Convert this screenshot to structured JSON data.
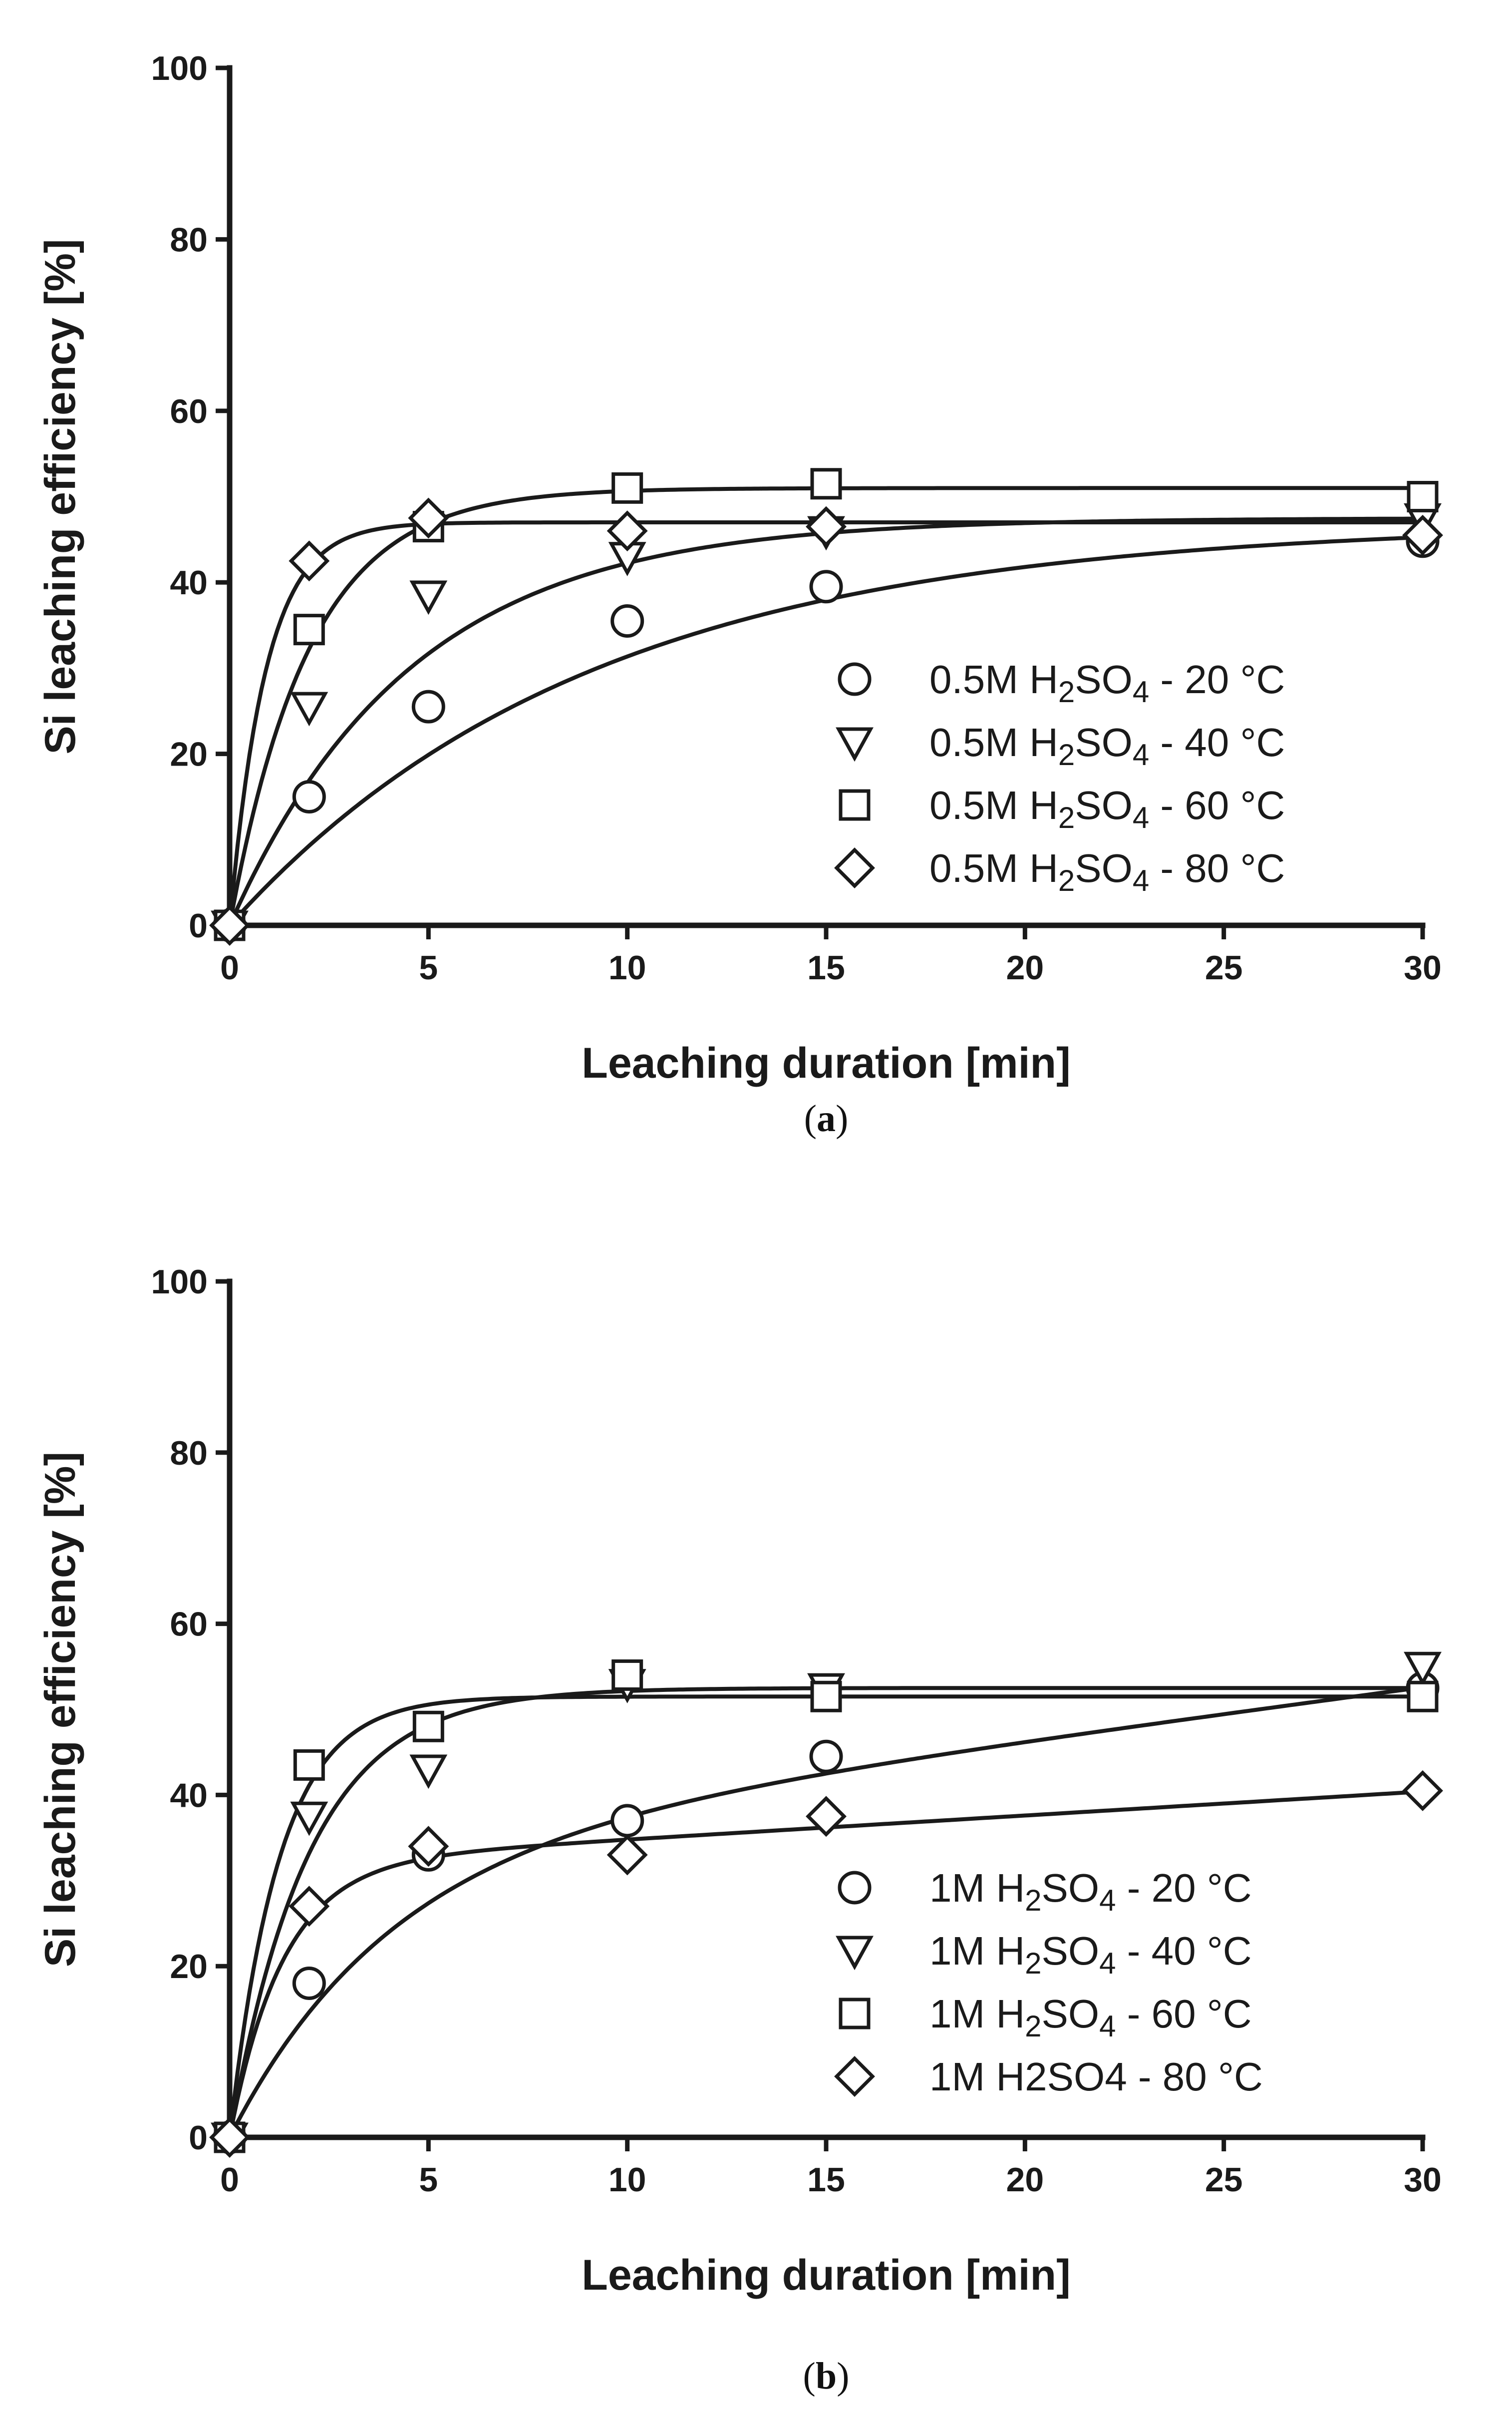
{
  "chart_data": [
    {
      "type": "scatter",
      "panel_label": "a",
      "caption_open": "(",
      "caption_close": ")",
      "xlabel": "Leaching duration [min]",
      "ylabel": "Si leaching efficiency [%]",
      "xlim": [
        0,
        30
      ],
      "ylim": [
        0,
        100
      ],
      "xticks": [
        0,
        5,
        10,
        15,
        20,
        25,
        30
      ],
      "yticks": [
        0,
        20,
        40,
        60,
        80,
        100
      ],
      "legend_position": "bottom-right",
      "series": [
        {
          "name": "0.5M H2SO4 - 20 °C",
          "label_parts": [
            "0.5M H",
            "2",
            "SO",
            "4",
            " - 20 °C"
          ],
          "marker": "circle",
          "x": [
            0,
            2,
            5,
            10,
            15,
            30
          ],
          "y": [
            0,
            15,
            25.5,
            35.5,
            39.5,
            44.8
          ],
          "fit": {
            "a": 47,
            "k": 0.11
          }
        },
        {
          "name": "0.5M H2SO4 - 40 °C",
          "label_parts": [
            "0.5M H",
            "2",
            "SO",
            "4",
            " - 40 °C"
          ],
          "marker": "triangle-down",
          "x": [
            0,
            2,
            5,
            10,
            15,
            30
          ],
          "y": [
            0,
            25.5,
            38.5,
            43,
            46,
            47.5
          ],
          "fit": {
            "a": 47.5,
            "k": 0.22
          }
        },
        {
          "name": "0.5M H2SO4 - 60 °C",
          "label_parts": [
            "0.5M H",
            "2",
            "SO",
            "4",
            " - 60 °C"
          ],
          "marker": "square",
          "x": [
            0,
            2,
            5,
            10,
            15,
            30
          ],
          "y": [
            0,
            34.5,
            46.5,
            51,
            51.5,
            50
          ],
          "fit": {
            "a": 51,
            "k": 0.5
          }
        },
        {
          "name": "0.5M H2SO4 - 80 °C",
          "label_parts": [
            "0.5M H",
            "2",
            "SO",
            "4",
            " - 80 °C"
          ],
          "marker": "diamond",
          "x": [
            0,
            2,
            5,
            10,
            15,
            30
          ],
          "y": [
            0,
            42.5,
            47.5,
            46,
            46.5,
            45.5
          ],
          "fit": {
            "a": 47,
            "k": 1.1
          }
        }
      ]
    },
    {
      "type": "scatter",
      "panel_label": "b",
      "caption_open": "(",
      "caption_close": ")",
      "xlabel": "Leaching duration [min]",
      "ylabel": "Si leaching efficiency [%]",
      "xlim": [
        0,
        30
      ],
      "ylim": [
        0,
        100
      ],
      "xticks": [
        0,
        5,
        10,
        15,
        20,
        25,
        30
      ],
      "yticks": [
        0,
        20,
        40,
        60,
        80,
        100
      ],
      "legend_position": "bottom-right",
      "series": [
        {
          "name": "1M H2SO4 - 20 °C",
          "label_parts": [
            "1M H",
            "2",
            "SO",
            "4",
            " - 20 °C"
          ],
          "marker": "circle",
          "x": [
            0,
            2,
            5,
            10,
            15,
            30
          ],
          "y": [
            0,
            18,
            33,
            37,
            44.5,
            52.5
          ],
          "fit": {
            "a": 34,
            "k": 0.25,
            "b": 0.62
          }
        },
        {
          "name": "1M H2SO4 - 40 °C",
          "label_parts": [
            "1M H",
            "2",
            "SO",
            "4",
            " - 40 °C"
          ],
          "marker": "triangle-down",
          "x": [
            0,
            2,
            5,
            10,
            15,
            30
          ],
          "y": [
            0,
            37.5,
            43,
            53,
            52.5,
            55
          ],
          "fit": {
            "a": 52.5,
            "k": 0.5
          }
        },
        {
          "name": "1M H2SO4 - 60 °C",
          "label_parts": [
            "1M H",
            "2",
            "SO",
            "4",
            " - 60 °C"
          ],
          "marker": "square",
          "x": [
            0,
            2,
            5,
            10,
            15,
            30
          ],
          "y": [
            0,
            43.5,
            48,
            54,
            51.5,
            51.5
          ],
          "fit": {
            "a": 51.5,
            "k": 0.8
          }
        },
        {
          "name": "1M H2SO4 - 80 °C",
          "label_parts": [
            "1M H2SO4 - 80 °C"
          ],
          "marker": "diamond",
          "x": [
            0,
            2,
            5,
            10,
            15,
            30
          ],
          "y": [
            0,
            27,
            34,
            33,
            37.5,
            40.5
          ],
          "fit": {
            "a": 32,
            "k": 0.75,
            "b": 0.28
          }
        }
      ]
    }
  ]
}
